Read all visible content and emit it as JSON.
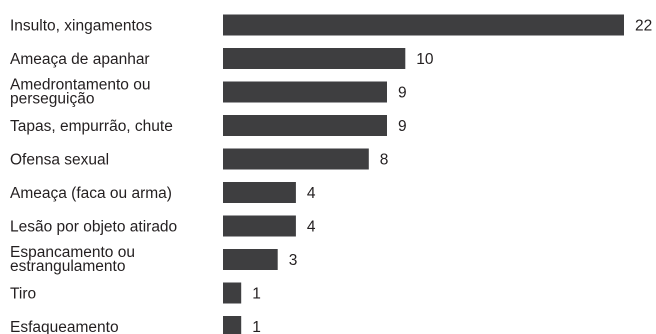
{
  "chart_data": {
    "type": "bar",
    "orientation": "horizontal",
    "categories": [
      [
        "Insulto, xingamentos"
      ],
      [
        "Ameaça de apanhar"
      ],
      [
        "Amedrontamento ou",
        "perseguição"
      ],
      [
        "Tapas, empurrão, chute"
      ],
      [
        "Ofensa sexual"
      ],
      [
        "Ameaça (faca ou arma)"
      ],
      [
        "Lesão por objeto atirado"
      ],
      [
        "Espancamento ou",
        "estrangulamento"
      ],
      [
        "Tiro"
      ],
      [
        "Esfaqueamento"
      ]
    ],
    "values": [
      22,
      10,
      9,
      9,
      8,
      4,
      4,
      3,
      1,
      1
    ],
    "value_labels": [
      "22",
      "10",
      "9",
      "9",
      "8",
      "4",
      "4",
      "3",
      "1",
      "1"
    ],
    "xlim": [
      0,
      22
    ],
    "title": "",
    "xlabel": "",
    "ylabel": "",
    "bar_color": "#3e3e40",
    "grid": false,
    "legend": "none"
  }
}
